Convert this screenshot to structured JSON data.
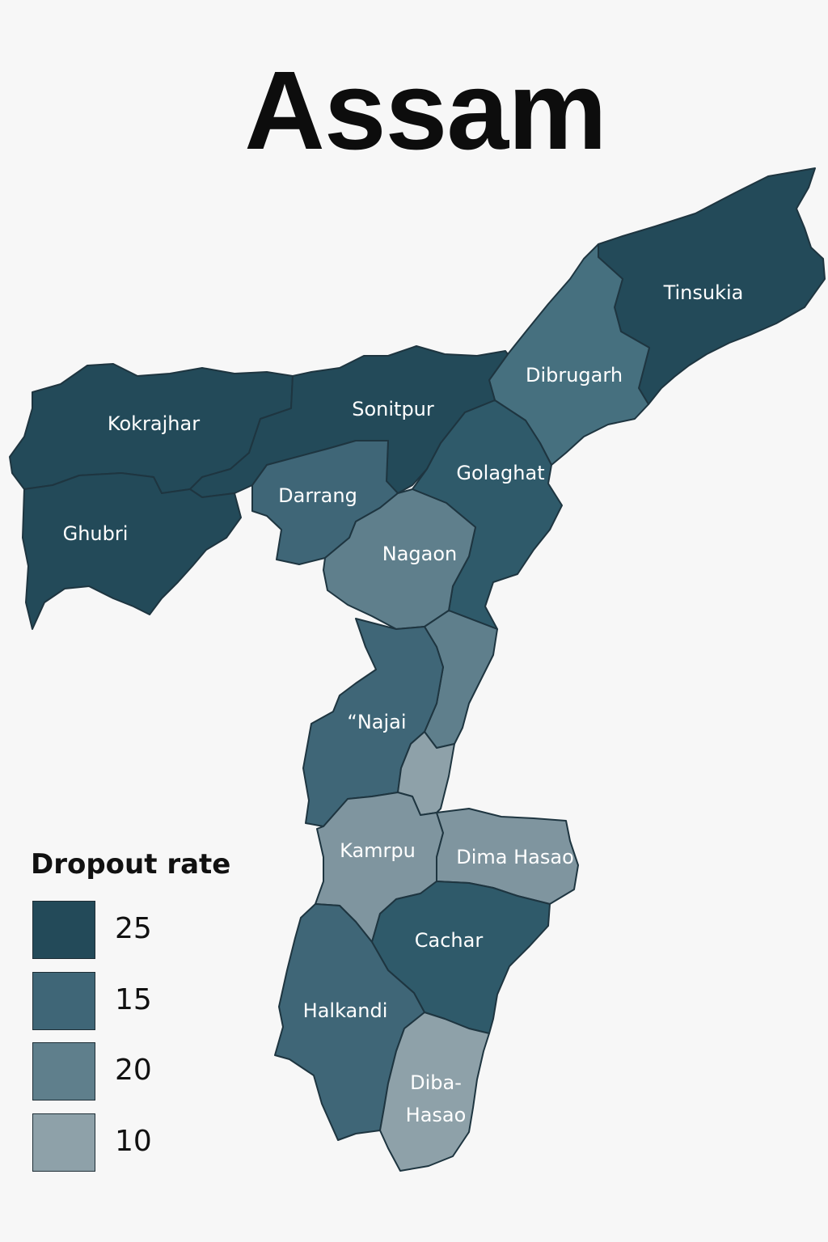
{
  "title": "Assam",
  "colors": {
    "c25": "#234a59",
    "c15": "#3f6677",
    "c20": "#5f7f8c",
    "c10": "#8ea1a9",
    "cMid": "#46707f",
    "cLight": "#7f959f",
    "cDeep": "#2f5a6a"
  },
  "legend": {
    "title": "Dropout rate",
    "items": [
      {
        "label": "25",
        "color": "#234a59"
      },
      {
        "label": "15",
        "color": "#3f6677"
      },
      {
        "label": "20",
        "color": "#5f7f8c"
      },
      {
        "label": "10",
        "color": "#8ea1a9"
      }
    ]
  },
  "districts": [
    {
      "label": "Tinsukia",
      "color": "#234a59"
    },
    {
      "label": "Dibrugarh",
      "color": "#46707f"
    },
    {
      "label": "Kokrajhar",
      "color": "#234a59"
    },
    {
      "label": "Sonitpur",
      "color": "#234a59"
    },
    {
      "label": "Golaghat",
      "color": "#2f5a6a"
    },
    {
      "label": "Ghubri",
      "color": "#234a59"
    },
    {
      "label": "Darrang",
      "color": "#3f6677"
    },
    {
      "label": "Nagaon",
      "color": "#5f7f8c"
    },
    {
      "label": "“Najai",
      "color": "#3f6677"
    },
    {
      "label": "Kamrpu",
      "color": "#7f959f"
    },
    {
      "label": "Dima Hasao",
      "color": "#7f959f"
    },
    {
      "label": "Cachar",
      "color": "#2f5a6a"
    },
    {
      "label": "Halkandi",
      "color": "#3f6677"
    },
    {
      "label": "Diba-",
      "color": "#8ea1a9"
    },
    {
      "label": "Hasao",
      "color": "#8ea1a9"
    }
  ]
}
